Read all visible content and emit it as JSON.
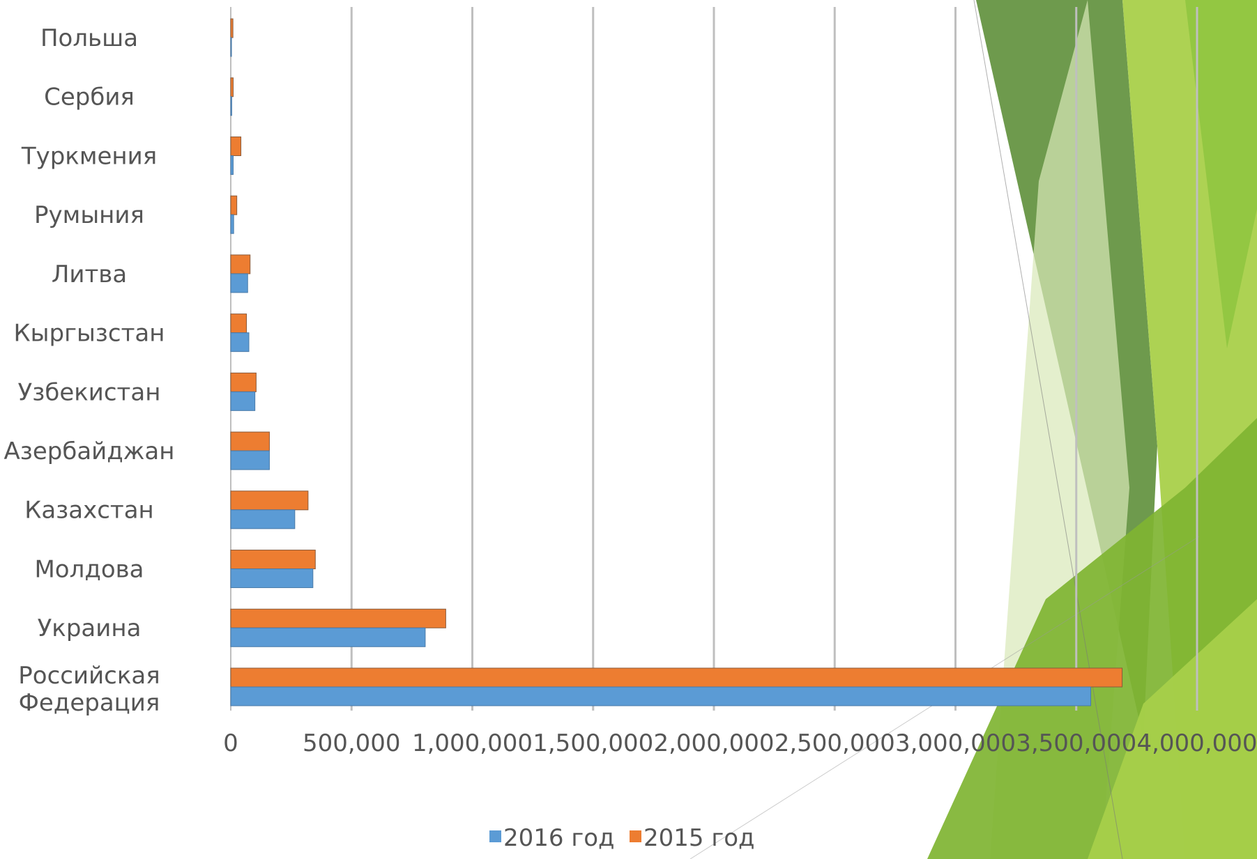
{
  "colors": {
    "series_2016": "#5b9bd5",
    "series_2015": "#ed7d31",
    "gridline": "#bfbfbf",
    "text": "#555555",
    "decor_dark_green": "#5e8f3a",
    "decor_green": "#7fb432",
    "decor_light_green": "#a9d04a",
    "decor_pale_green": "#d9e8b8"
  },
  "chart_data": {
    "type": "bar",
    "orientation": "horizontal",
    "categories": [
      "Польша",
      "Сербия",
      "Туркмения",
      "Румыния",
      "Литва",
      "Кыргызстан",
      "Узбекистан",
      "Азербайджан",
      "Казахстан",
      "Молдова",
      "Украина",
      "Российская Федерация"
    ],
    "series": [
      {
        "name": "2016 год",
        "values": [
          3000,
          4000,
          10000,
          12000,
          70000,
          75000,
          100000,
          160000,
          265000,
          340000,
          805000,
          3560000
        ]
      },
      {
        "name": "2015 год",
        "values": [
          9000,
          10000,
          42000,
          25000,
          80000,
          65000,
          105000,
          160000,
          320000,
          350000,
          890000,
          3690000
        ]
      }
    ],
    "xlim": [
      0,
      4000000
    ],
    "xticks": [
      "0",
      "500,000",
      "1,000,000",
      "1,500,000",
      "2,000,000",
      "2,500,000",
      "3,000,000",
      "3,500,000",
      "4,000,000"
    ],
    "grid": "vertical",
    "legend": "bottom"
  }
}
